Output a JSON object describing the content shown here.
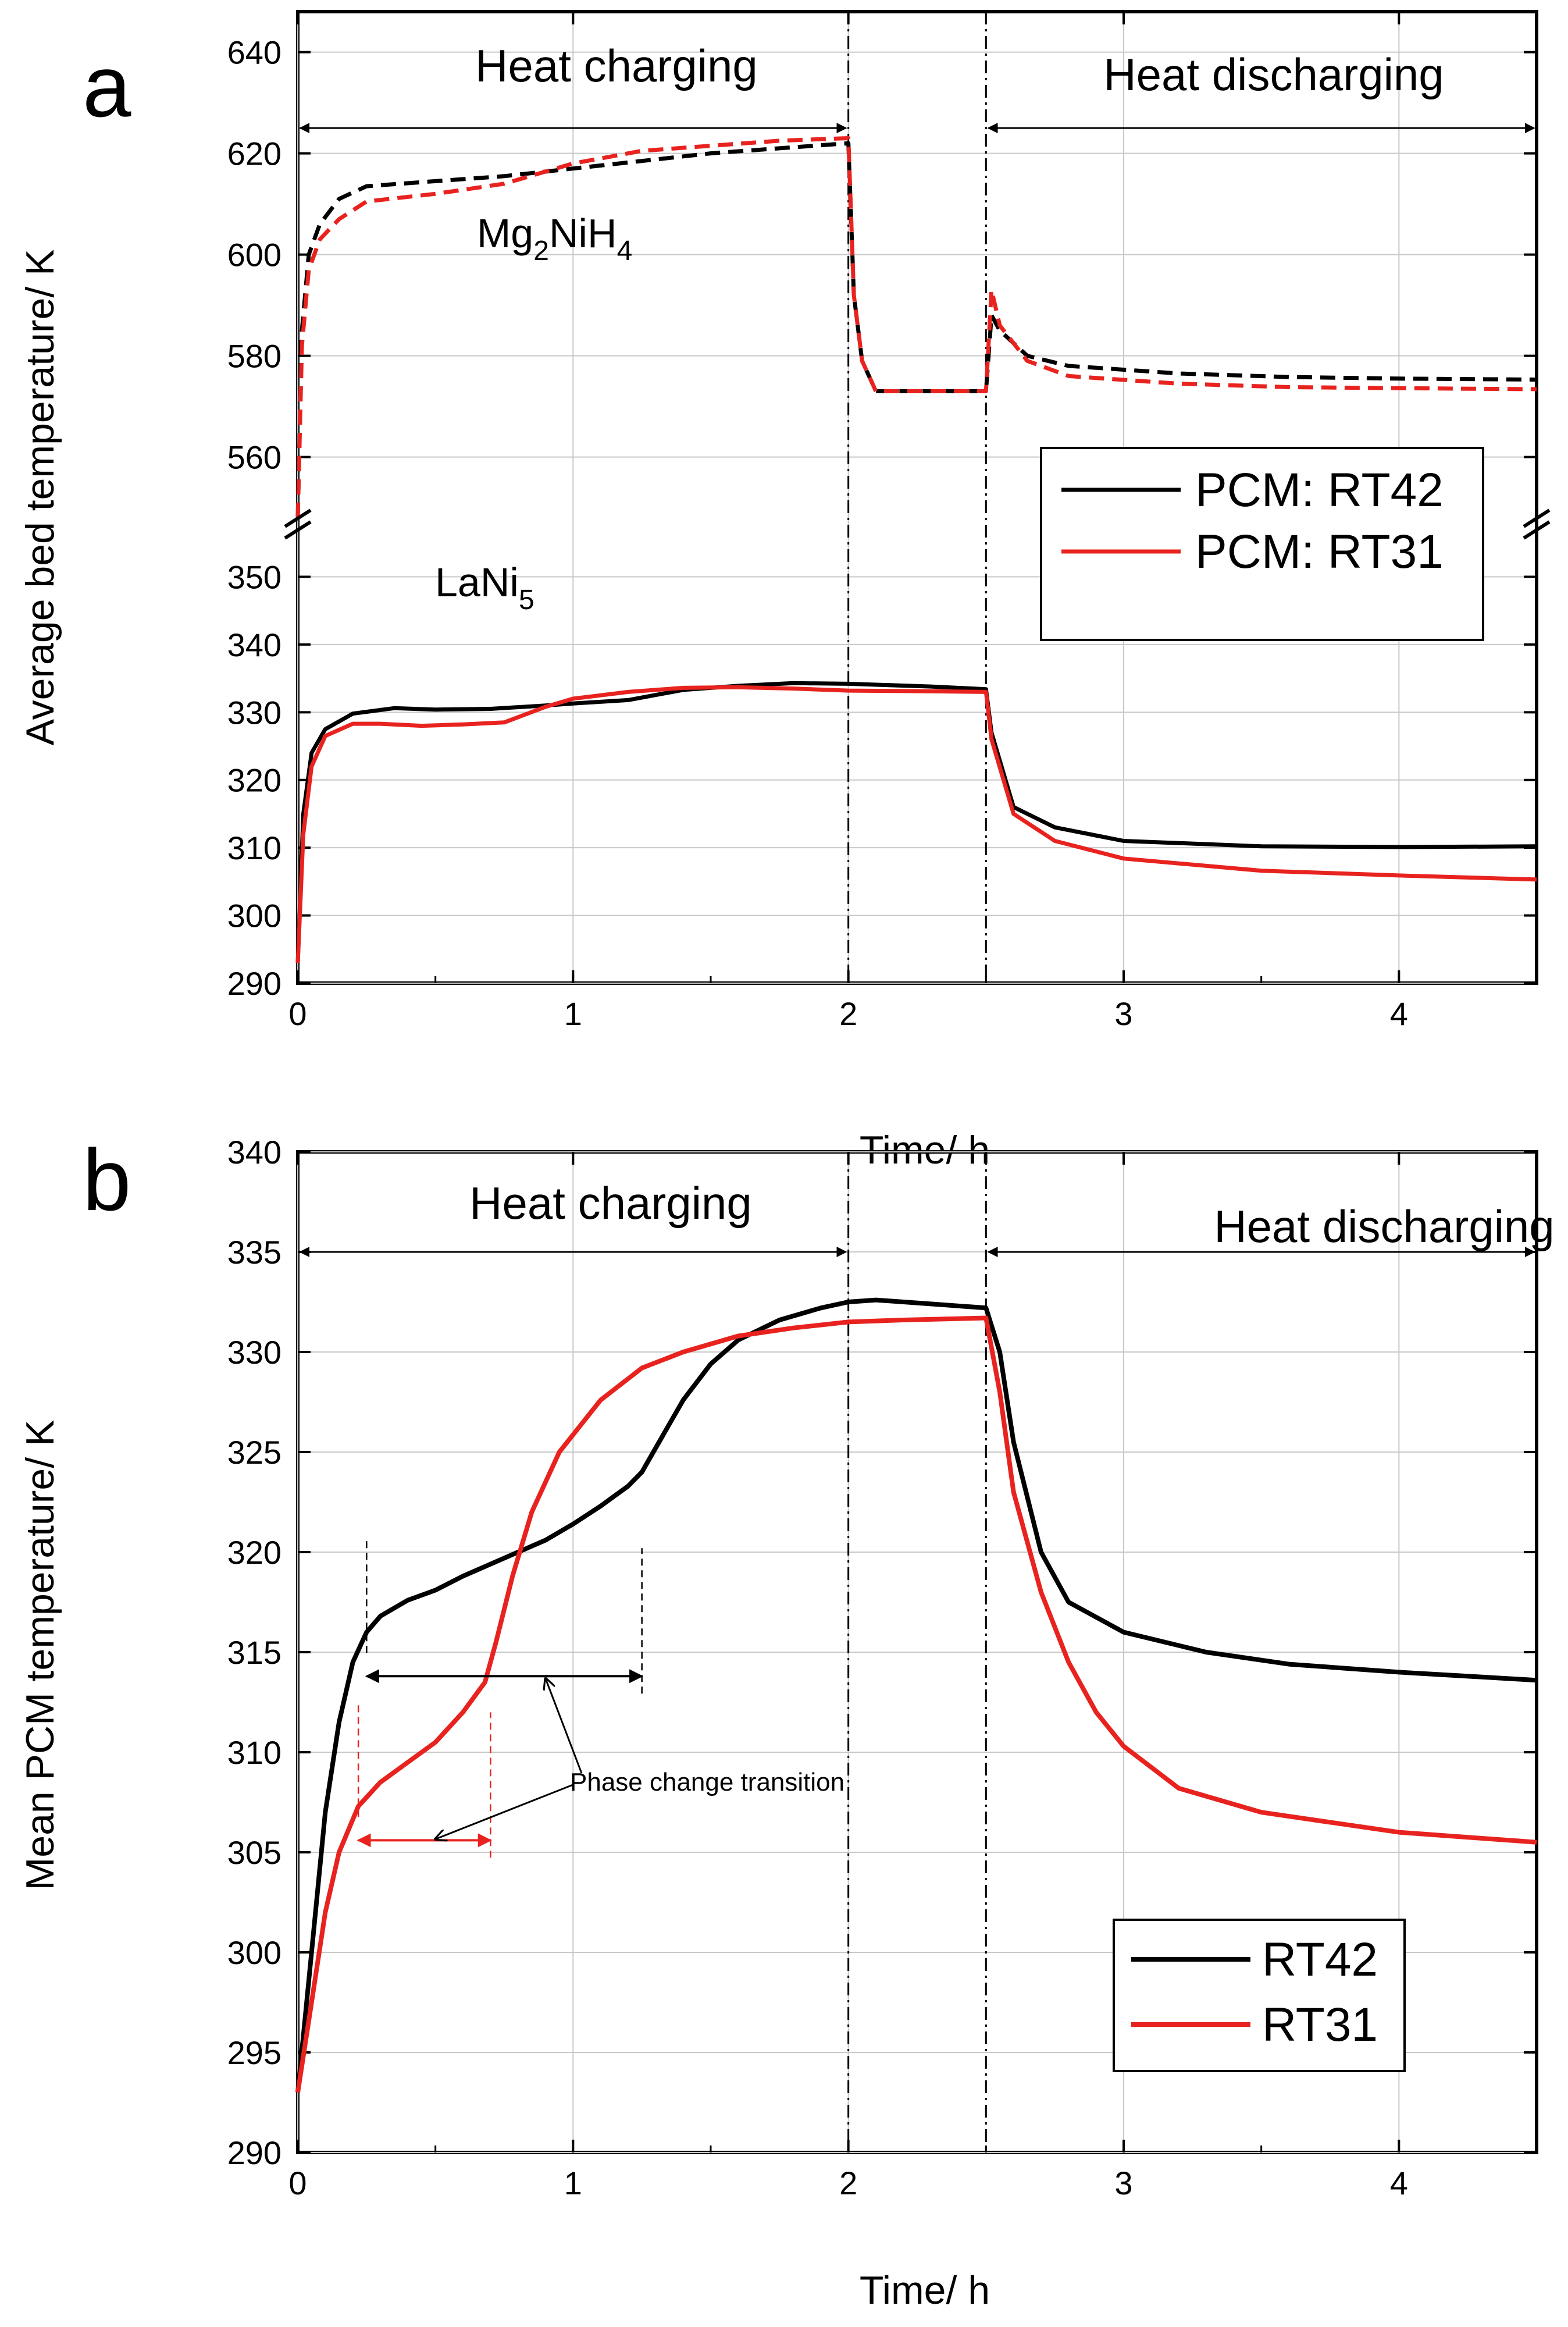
{
  "chart_data": [
    {
      "type": "line",
      "panel": "a",
      "ylabel": "Average bed temperature/ K",
      "xlabel": "Time/ h",
      "xlim": [
        0,
        4.5
      ],
      "x_ticks": [
        "0",
        "1",
        "2",
        "3",
        "4"
      ],
      "broken_y_axis": true,
      "ylim_lower": [
        290,
        357
      ],
      "ylim_upper": [
        548,
        648
      ],
      "y_ticks_lower": [
        "290",
        "300",
        "310",
        "320",
        "330",
        "340",
        "350"
      ],
      "y_ticks_upper": [
        "560",
        "580",
        "600",
        "620",
        "640"
      ],
      "phases": [
        {
          "label": "Heat charging",
          "from": 0,
          "to": 2
        },
        {
          "label": "Heat discharging",
          "from": 2.5,
          "to": 4.5
        }
      ],
      "divider_lines": [
        2,
        2.5
      ],
      "material_labels": {
        "hydride_high_a": "Mg",
        "hydride_high_b": "2",
        "hydride_high_c": "NiH",
        "hydride_high_d": "4",
        "hydride_low_a": "LaNi",
        "hydride_low_b": "5"
      },
      "legend": [
        "PCM: RT42",
        "PCM: RT31"
      ],
      "series": [
        {
          "name": "PCM: RT42",
          "color": "#000000",
          "style": "solid",
          "material": "LaNi5",
          "points": [
            [
              0,
              293
            ],
            [
              0.02,
              315
            ],
            [
              0.05,
              324
            ],
            [
              0.1,
              327.5
            ],
            [
              0.2,
              329.8
            ],
            [
              0.35,
              330.6
            ],
            [
              0.5,
              330.4
            ],
            [
              0.7,
              330.5
            ],
            [
              0.9,
              331
            ],
            [
              1.0,
              331.3
            ],
            [
              1.2,
              331.8
            ],
            [
              1.4,
              333.3
            ],
            [
              1.6,
              333.9
            ],
            [
              1.8,
              334.3
            ],
            [
              2.0,
              334.2
            ],
            [
              2.3,
              333.8
            ],
            [
              2.5,
              333.4
            ],
            [
              2.52,
              327
            ],
            [
              2.6,
              316
            ],
            [
              2.75,
              313
            ],
            [
              3.0,
              311
            ],
            [
              3.5,
              310.2
            ],
            [
              4.0,
              310.1
            ],
            [
              4.5,
              310.2
            ]
          ]
        },
        {
          "name": "PCM: RT31",
          "color": "#e8231f",
          "style": "solid",
          "material": "LaNi5",
          "points": [
            [
              0,
              293
            ],
            [
              0.02,
              312
            ],
            [
              0.05,
              322
            ],
            [
              0.1,
              326.5
            ],
            [
              0.2,
              328.3
            ],
            [
              0.3,
              328.3
            ],
            [
              0.45,
              328
            ],
            [
              0.6,
              328.2
            ],
            [
              0.75,
              328.5
            ],
            [
              0.9,
              330.8
            ],
            [
              1.0,
              332
            ],
            [
              1.2,
              333
            ],
            [
              1.4,
              333.6
            ],
            [
              1.6,
              333.7
            ],
            [
              1.8,
              333.5
            ],
            [
              2.0,
              333.2
            ],
            [
              2.3,
              333.1
            ],
            [
              2.5,
              333
            ],
            [
              2.52,
              326
            ],
            [
              2.6,
              315
            ],
            [
              2.75,
              311
            ],
            [
              3.0,
              308.4
            ],
            [
              3.5,
              306.6
            ],
            [
              4.0,
              305.9
            ],
            [
              4.5,
              305.3
            ]
          ]
        },
        {
          "name": "PCM: RT42",
          "color": "#000000",
          "style": "dashed",
          "material": "Mg2NiH4",
          "points": [
            [
              0,
              548
            ],
            [
              0.015,
              585
            ],
            [
              0.04,
              600
            ],
            [
              0.08,
              606
            ],
            [
              0.15,
              611
            ],
            [
              0.25,
              613.5
            ],
            [
              0.5,
              614.5
            ],
            [
              0.75,
              615.5
            ],
            [
              1.0,
              617
            ],
            [
              1.25,
              618.5
            ],
            [
              1.5,
              620
            ],
            [
              1.75,
              621
            ],
            [
              2.0,
              622
            ],
            [
              2.02,
              592
            ],
            [
              2.05,
              579
            ],
            [
              2.1,
              573
            ],
            [
              2.5,
              573
            ],
            [
              2.52,
              588
            ],
            [
              2.55,
              585
            ],
            [
              2.65,
              580
            ],
            [
              2.8,
              578
            ],
            [
              3.2,
              576.5
            ],
            [
              3.6,
              575.8
            ],
            [
              4.0,
              575.5
            ],
            [
              4.5,
              575.3
            ]
          ]
        },
        {
          "name": "PCM: RT31",
          "color": "#e8231f",
          "style": "dashed",
          "material": "Mg2NiH4",
          "points": [
            [
              0,
              548
            ],
            [
              0.015,
              582
            ],
            [
              0.04,
              597
            ],
            [
              0.08,
              603
            ],
            [
              0.15,
              607
            ],
            [
              0.25,
              610.5
            ],
            [
              0.5,
              612
            ],
            [
              0.75,
              614
            ],
            [
              1.0,
              618
            ],
            [
              1.25,
              620.5
            ],
            [
              1.5,
              621.5
            ],
            [
              1.75,
              622.5
            ],
            [
              2.0,
              623
            ],
            [
              2.02,
              592
            ],
            [
              2.05,
              579
            ],
            [
              2.1,
              573
            ],
            [
              2.5,
              573
            ],
            [
              2.52,
              593
            ],
            [
              2.55,
              586
            ],
            [
              2.65,
              579
            ],
            [
              2.8,
              576
            ],
            [
              3.2,
              574.5
            ],
            [
              3.6,
              573.8
            ],
            [
              4.0,
              573.6
            ],
            [
              4.5,
              573.4
            ]
          ]
        }
      ]
    },
    {
      "type": "line",
      "panel": "b",
      "ylabel": "Mean PCM temperature/ K",
      "xlabel": "Time/ h",
      "xlim": [
        0,
        4.5
      ],
      "ylim": [
        290,
        340
      ],
      "x_ticks": [
        "0",
        "1",
        "2",
        "3",
        "4"
      ],
      "y_ticks": [
        "290",
        "295",
        "300",
        "305",
        "310",
        "315",
        "320",
        "325",
        "330",
        "335",
        "340"
      ],
      "phases": [
        {
          "label": "Heat charging",
          "from": 0,
          "to": 2
        },
        {
          "label": "Heat discharging",
          "from": 2.5,
          "to": 4.5
        }
      ],
      "divider_lines": [
        2,
        2.5
      ],
      "annotation": "Phase change transition",
      "transition_ranges": [
        {
          "series": "RT42",
          "from": 0.25,
          "to": 1.25,
          "y": 313.8
        },
        {
          "series": "RT31",
          "from": 0.22,
          "to": 0.7,
          "y": 305.6
        }
      ],
      "legend": [
        "RT42",
        "RT31"
      ],
      "series": [
        {
          "name": "RT42",
          "color": "#000000",
          "points": [
            [
              0,
              293
            ],
            [
              0.05,
              300
            ],
            [
              0.1,
              307
            ],
            [
              0.15,
              311.5
            ],
            [
              0.2,
              314.5
            ],
            [
              0.25,
              316
            ],
            [
              0.3,
              316.8
            ],
            [
              0.4,
              317.6
            ],
            [
              0.5,
              318.1
            ],
            [
              0.6,
              318.8
            ],
            [
              0.75,
              319.7
            ],
            [
              0.9,
              320.6
            ],
            [
              1.0,
              321.4
            ],
            [
              1.1,
              322.3
            ],
            [
              1.2,
              323.3
            ],
            [
              1.25,
              324
            ],
            [
              1.3,
              325.2
            ],
            [
              1.4,
              327.6
            ],
            [
              1.5,
              329.4
            ],
            [
              1.6,
              330.6
            ],
            [
              1.75,
              331.6
            ],
            [
              1.9,
              332.2
            ],
            [
              2.0,
              332.5
            ],
            [
              2.1,
              332.6
            ],
            [
              2.3,
              332.4
            ],
            [
              2.5,
              332.2
            ],
            [
              2.55,
              330
            ],
            [
              2.6,
              325.5
            ],
            [
              2.7,
              320
            ],
            [
              2.8,
              317.5
            ],
            [
              3.0,
              316
            ],
            [
              3.3,
              315
            ],
            [
              3.6,
              314.4
            ],
            [
              4.0,
              314
            ],
            [
              4.5,
              313.6
            ]
          ]
        },
        {
          "name": "RT31",
          "color": "#e8231f",
          "points": [
            [
              0,
              293
            ],
            [
              0.05,
              297.5
            ],
            [
              0.1,
              302
            ],
            [
              0.15,
              305
            ],
            [
              0.22,
              307.3
            ],
            [
              0.3,
              308.5
            ],
            [
              0.4,
              309.5
            ],
            [
              0.5,
              310.5
            ],
            [
              0.6,
              312
            ],
            [
              0.68,
              313.5
            ],
            [
              0.72,
              315.5
            ],
            [
              0.78,
              318.8
            ],
            [
              0.85,
              322
            ],
            [
              0.95,
              325
            ],
            [
              1.1,
              327.6
            ],
            [
              1.25,
              329.2
            ],
            [
              1.4,
              330
            ],
            [
              1.6,
              330.8
            ],
            [
              1.8,
              331.2
            ],
            [
              2.0,
              331.5
            ],
            [
              2.2,
              331.6
            ],
            [
              2.5,
              331.7
            ],
            [
              2.55,
              328
            ],
            [
              2.6,
              323
            ],
            [
              2.7,
              318
            ],
            [
              2.8,
              314.5
            ],
            [
              2.9,
              312
            ],
            [
              3.0,
              310.3
            ],
            [
              3.2,
              308.2
            ],
            [
              3.5,
              307
            ],
            [
              4.0,
              306
            ],
            [
              4.5,
              305.5
            ]
          ]
        }
      ]
    }
  ]
}
